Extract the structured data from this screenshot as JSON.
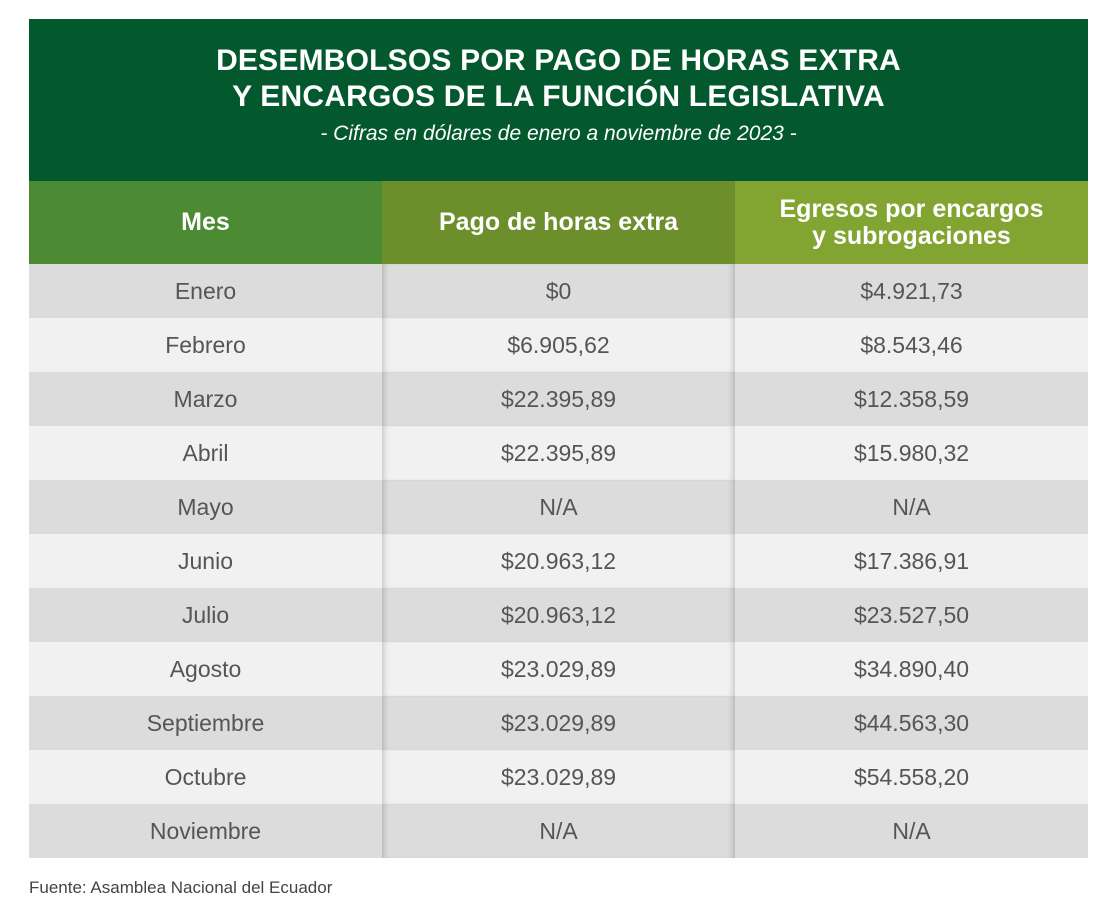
{
  "title_line1": "DESEMBOLSOS POR PAGO DE HORAS EXTRA",
  "title_line2": "Y ENCARGOS DE LA FUNCIÓN LEGISLATIVA",
  "subtitle": "-  Cifras en dólares de enero a noviembre de 2023 -",
  "headers": {
    "mes": "Mes",
    "horas": "Pago de horas extra",
    "egresos_line1": "Egresos por encargos",
    "egresos_line2": "y subrogaciones"
  },
  "colors": {
    "banner": "#03592d",
    "header_mes": "#4c8a33",
    "header_horas": "#6c8f2c",
    "header_egresos": "#82a532",
    "row_odd": "#dcdcdc",
    "row_even": "#f1f1f1"
  },
  "chart_data": {
    "type": "table",
    "title": "DESEMBOLSOS POR PAGO DE HORAS EXTRA Y ENCARGOS DE LA FUNCIÓN LEGISLATIVA",
    "subtitle": "-  Cifras en dólares de enero a noviembre de 2023 -",
    "columns": [
      "Mes",
      "Pago de horas extra",
      "Egresos por encargos y subrogaciones"
    ],
    "rows": [
      [
        "Enero",
        "$0",
        "$4.921,73"
      ],
      [
        "Febrero",
        "$6.905,62",
        "$8.543,46"
      ],
      [
        "Marzo",
        "$22.395,89",
        "$12.358,59"
      ],
      [
        "Abril",
        "$22.395,89",
        "$15.980,32"
      ],
      [
        "Mayo",
        "N/A",
        "N/A"
      ],
      [
        "Junio",
        "$20.963,12",
        "$17.386,91"
      ],
      [
        "Julio",
        "$20.963,12",
        "$23.527,50"
      ],
      [
        "Agosto",
        "$23.029,89",
        "$34.890,40"
      ],
      [
        "Septiembre",
        "$23.029,89",
        "$44.563,30"
      ],
      [
        "Octubre",
        "$23.029,89",
        "$54.558,20"
      ],
      [
        "Noviembre",
        "N/A",
        "N/A"
      ]
    ]
  },
  "source": "Fuente: Asamblea Nacional del Ecuador"
}
